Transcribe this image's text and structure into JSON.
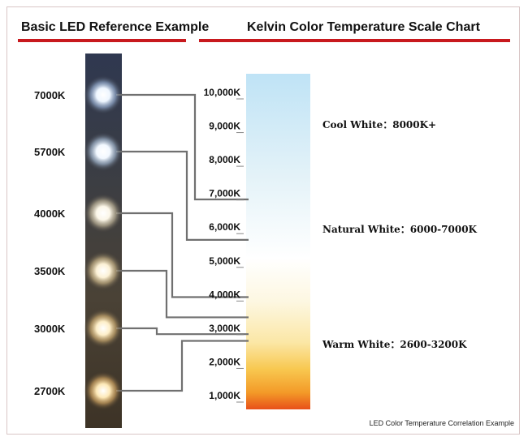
{
  "left_title": "Basic LED Reference Example",
  "right_title": "Kelvin Color Temperature Scale Chart",
  "colors": {
    "accent": "#c8191e",
    "connector": "#707070",
    "strip": "#3a3d45"
  },
  "led_labels": [
    "7000K",
    "5700K",
    "4000K",
    "3500K",
    "3000K",
    "2700K"
  ],
  "led_icon": "led-bulb-icon",
  "scale": {
    "ticks": [
      "10,000K",
      "9,000K",
      "8,000K",
      "7,000K",
      "6,000K",
      "5,000K",
      "4,000K",
      "3,000K",
      "2,000K",
      "1,000K"
    ],
    "range_k": [
      1000,
      10000
    ]
  },
  "connections": [
    {
      "from": "7000K",
      "to_k": 6800
    },
    {
      "from": "5700K",
      "to_k": 5600
    },
    {
      "from": "4000K",
      "to_k": 3900
    },
    {
      "from": "3500K",
      "to_k": 3300
    },
    {
      "from": "3000K",
      "to_k": 2800
    },
    {
      "from": "2700K",
      "to_k": 2600
    }
  ],
  "zones": {
    "cool": "Cool White：8000K+",
    "natural": "Natural White：6000-7000K",
    "warm": "Warm White：2600-3200K"
  },
  "footnote": "LED Color Temperature Correlation Example"
}
